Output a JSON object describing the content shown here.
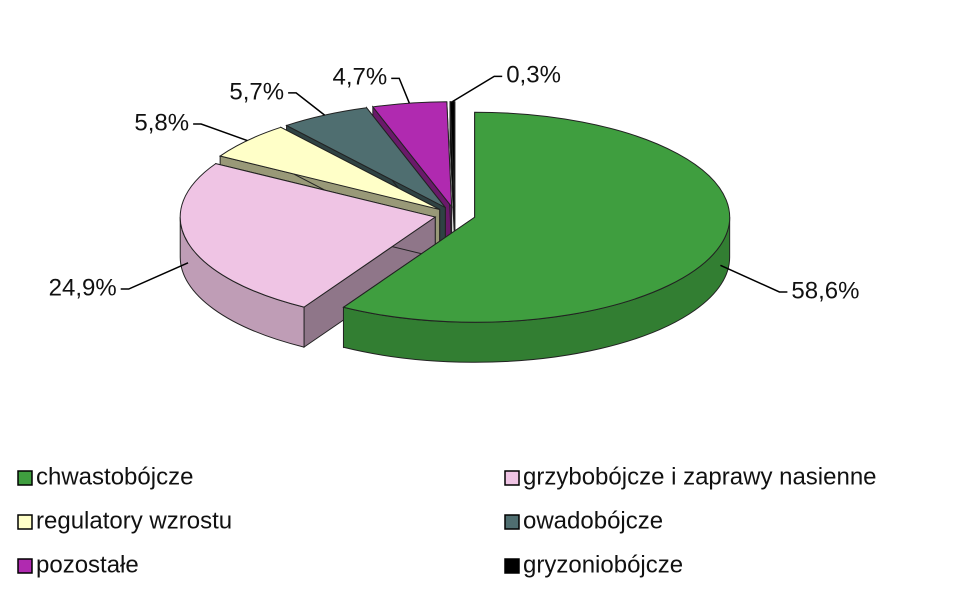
{
  "chart_data": {
    "type": "pie",
    "categories": [
      "chwastobójcze",
      "grzybobójcze i zaprawy nasienne",
      "regulatory wzrostu",
      "owadobójcze",
      "pozostałe",
      "gryzoniobójcze"
    ],
    "values": [
      58.6,
      24.9,
      5.8,
      5.7,
      4.7,
      0.3
    ],
    "value_labels": [
      "58,6%",
      "24,9%",
      "5,8%",
      "5,7%",
      "4,7%",
      "0,3%"
    ],
    "colors": [
      "#3f9e3f",
      "#efc4e4",
      "#ffffc8",
      "#4f6e70",
      "#b02ab0",
      "#000000"
    ]
  }
}
